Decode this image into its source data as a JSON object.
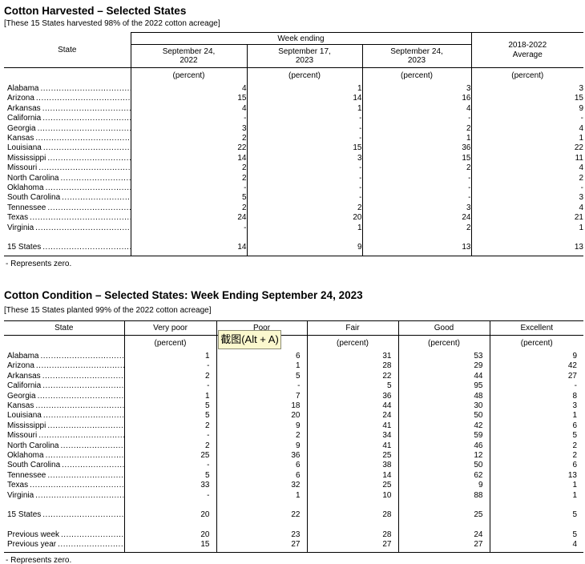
{
  "table1": {
    "title": "Cotton Harvested – Selected States",
    "subtitle": "[These 15 States harvested 98% of the 2022 cotton acreage]",
    "headers": {
      "state": "State",
      "week_group": "Week ending",
      "weeks": [
        "September 24, 2022",
        "September 17, 2023",
        "September 24, 2023"
      ],
      "average": "2018-2022 Average",
      "unit": "(percent)"
    },
    "rows": [
      {
        "state": "Alabama",
        "values": [
          "4",
          "1",
          "3",
          "3"
        ]
      },
      {
        "state": "Arizona",
        "values": [
          "15",
          "14",
          "16",
          "15"
        ]
      },
      {
        "state": "Arkansas",
        "values": [
          "4",
          "1",
          "4",
          "9"
        ]
      },
      {
        "state": "California",
        "values": [
          "-",
          "-",
          "-",
          "-"
        ]
      },
      {
        "state": "Georgia",
        "values": [
          "3",
          "-",
          "2",
          "4"
        ]
      },
      {
        "state": "Kansas",
        "values": [
          "2",
          "-",
          "1",
          "1"
        ]
      },
      {
        "state": "Louisiana",
        "values": [
          "22",
          "15",
          "36",
          "22"
        ]
      },
      {
        "state": "Mississippi",
        "values": [
          "14",
          "3",
          "15",
          "11"
        ]
      },
      {
        "state": "Missouri",
        "values": [
          "2",
          "-",
          "2",
          "4"
        ]
      },
      {
        "state": "North Carolina",
        "values": [
          "2",
          "-",
          "-",
          "2"
        ]
      },
      {
        "state": "Oklahoma",
        "values": [
          "-",
          "-",
          "-",
          "-"
        ]
      },
      {
        "state": "South Carolina",
        "values": [
          "5",
          "-",
          "-",
          "3"
        ]
      },
      {
        "state": "Tennessee",
        "values": [
          "2",
          "2",
          "3",
          "4"
        ]
      },
      {
        "state": "Texas",
        "values": [
          "24",
          "20",
          "24",
          "21"
        ]
      },
      {
        "state": "Virginia",
        "values": [
          "-",
          "1",
          "2",
          "1"
        ]
      }
    ],
    "total": {
      "state": "15 States",
      "values": [
        "14",
        "9",
        "13",
        "13"
      ]
    },
    "footnote": "- Represents zero."
  },
  "table2": {
    "title": "Cotton Condition – Selected States: Week Ending September 24, 2023",
    "subtitle": "[These 15 States planted 99% of the 2022 cotton acreage]",
    "headers": {
      "state": "State",
      "categories": [
        "Very poor",
        "Poor",
        "Fair",
        "Good",
        "Excellent"
      ],
      "unit": "(percent)"
    },
    "rows": [
      {
        "state": "Alabama",
        "values": [
          "1",
          "6",
          "31",
          "53",
          "9"
        ]
      },
      {
        "state": "Arizona",
        "values": [
          "-",
          "1",
          "28",
          "29",
          "42"
        ]
      },
      {
        "state": "Arkansas",
        "values": [
          "2",
          "5",
          "22",
          "44",
          "27"
        ]
      },
      {
        "state": "California",
        "values": [
          "-",
          "-",
          "5",
          "95",
          "-"
        ]
      },
      {
        "state": "Georgia",
        "values": [
          "1",
          "7",
          "36",
          "48",
          "8"
        ]
      },
      {
        "state": "Kansas",
        "values": [
          "5",
          "18",
          "44",
          "30",
          "3"
        ]
      },
      {
        "state": "Louisiana",
        "values": [
          "5",
          "20",
          "24",
          "50",
          "1"
        ]
      },
      {
        "state": "Mississippi",
        "values": [
          "2",
          "9",
          "41",
          "42",
          "6"
        ]
      },
      {
        "state": "Missouri",
        "values": [
          "-",
          "2",
          "34",
          "59",
          "5"
        ]
      },
      {
        "state": "North Carolina",
        "values": [
          "2",
          "9",
          "41",
          "46",
          "2"
        ]
      },
      {
        "state": "Oklahoma",
        "values": [
          "25",
          "36",
          "25",
          "12",
          "2"
        ]
      },
      {
        "state": "South Carolina",
        "values": [
          "-",
          "6",
          "38",
          "50",
          "6"
        ]
      },
      {
        "state": "Tennessee",
        "values": [
          "5",
          "6",
          "14",
          "62",
          "13"
        ]
      },
      {
        "state": "Texas",
        "values": [
          "33",
          "32",
          "25",
          "9",
          "1"
        ]
      },
      {
        "state": "Virginia",
        "values": [
          "-",
          "1",
          "10",
          "88",
          "1"
        ]
      }
    ],
    "total": {
      "state": "15 States",
      "values": [
        "20",
        "22",
        "28",
        "25",
        "5"
      ]
    },
    "previous": [
      {
        "state": "Previous week",
        "values": [
          "20",
          "23",
          "28",
          "24",
          "5"
        ]
      },
      {
        "state": "Previous year",
        "values": [
          "15",
          "27",
          "27",
          "27",
          "4"
        ]
      }
    ],
    "footnote": "- Represents zero."
  },
  "tooltip": {
    "text": "截图(Alt + A)",
    "background": "#FBF8CE",
    "border": "#8D8D75"
  }
}
